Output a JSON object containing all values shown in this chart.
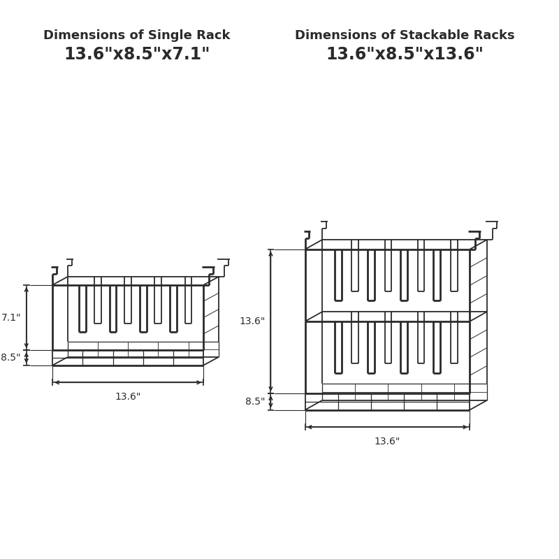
{
  "bg_color": "#ffffff",
  "line_color": "#2a2a2a",
  "title1": "Dimensions of Single Rack",
  "title2": "Dimensions of Stackable Racks",
  "dim1": "13.6\"x8.5\"x7.1\"",
  "dim2": "13.6\"x8.5\"x13.6\"",
  "label_71": "7.1\"",
  "label_85_left": "8.5\"",
  "label_136_bottom1": "13.6\"",
  "label_136_left": "13.6\"",
  "label_85_right": "8.5\"",
  "label_136_bottom2": "13.6\""
}
